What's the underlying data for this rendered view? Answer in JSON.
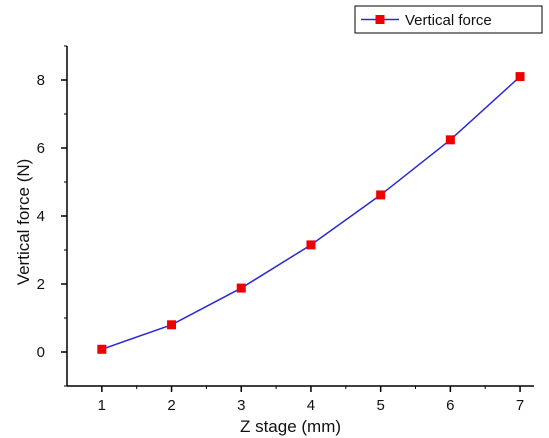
{
  "chart_data": {
    "type": "line",
    "title": "",
    "xlabel": "Z stage (mm)",
    "ylabel": "Vertical force (N)",
    "x": [
      1,
      2,
      3,
      4,
      5,
      6,
      7
    ],
    "x_ticks": [
      1,
      2,
      3,
      4,
      5,
      6,
      7
    ],
    "y_ticks": [
      0,
      2,
      4,
      6,
      8
    ],
    "xlim": [
      0.5,
      7.2
    ],
    "ylim": [
      -1,
      9
    ],
    "grid": false,
    "legend_position": "top-right",
    "series": [
      {
        "name": "Vertical force",
        "values": [
          0.08,
          0.8,
          1.88,
          3.15,
          4.62,
          6.24,
          8.1
        ],
        "line_color": "#2a2ad4",
        "marker": "square",
        "marker_color": "#ee0000"
      }
    ]
  }
}
